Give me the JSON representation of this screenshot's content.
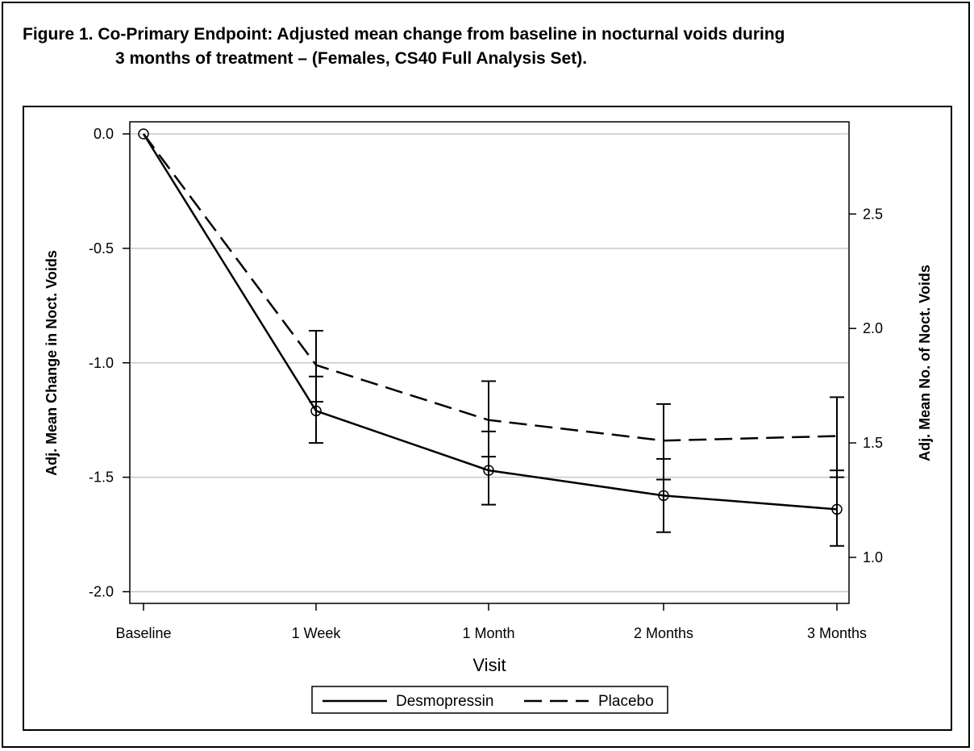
{
  "title": {
    "line1": "Figure 1. Co-Primary Endpoint: Adjusted mean change from baseline in nocturnal voids during",
    "line2": "3 months of treatment – (Females, CS40 Full Analysis Set)."
  },
  "chart_data": {
    "type": "line",
    "categories": [
      "Baseline",
      "1 Week",
      "1 Month",
      "2 Months",
      "3 Months"
    ],
    "xlabel": "Visit",
    "ylabel": "Adj. Mean Change in Noct. Voids",
    "y2label": "Adj. Mean No. of Noct. Voids",
    "ylim": [
      -2.05,
      0.05
    ],
    "yticks": [
      0.0,
      -0.5,
      -1.0,
      -1.5,
      -2.0
    ],
    "ytick_labels": [
      "0.0",
      "-0.5",
      "-1.0",
      "-1.5",
      "-2.0"
    ],
    "y2ticks": [
      2.5,
      2.0,
      1.5,
      1.0
    ],
    "y2tick_labels": [
      "2.5",
      "2.0",
      "1.5",
      "1.0"
    ],
    "y2_offset": 2.85,
    "grid": true,
    "legend_position": "bottom-center",
    "series": [
      {
        "name": "Desmopressin",
        "style": "solid",
        "marker": "circle",
        "values": [
          0.0,
          -1.21,
          -1.47,
          -1.58,
          -1.64
        ],
        "err_low": [
          0.0,
          -1.35,
          -1.62,
          -1.74,
          -1.8
        ],
        "err_high": [
          0.0,
          -1.06,
          -1.3,
          -1.42,
          -1.47
        ]
      },
      {
        "name": "Placebo",
        "style": "dashed",
        "marker": "none",
        "values": [
          0.0,
          -1.01,
          -1.25,
          -1.34,
          -1.32
        ],
        "err_low": [
          0.0,
          -1.17,
          -1.41,
          -1.51,
          -1.5
        ],
        "err_high": [
          0.0,
          -0.86,
          -1.08,
          -1.18,
          -1.15
        ]
      }
    ],
    "colors": {
      "line": "#000000",
      "grid": "#c8c8c8"
    }
  }
}
